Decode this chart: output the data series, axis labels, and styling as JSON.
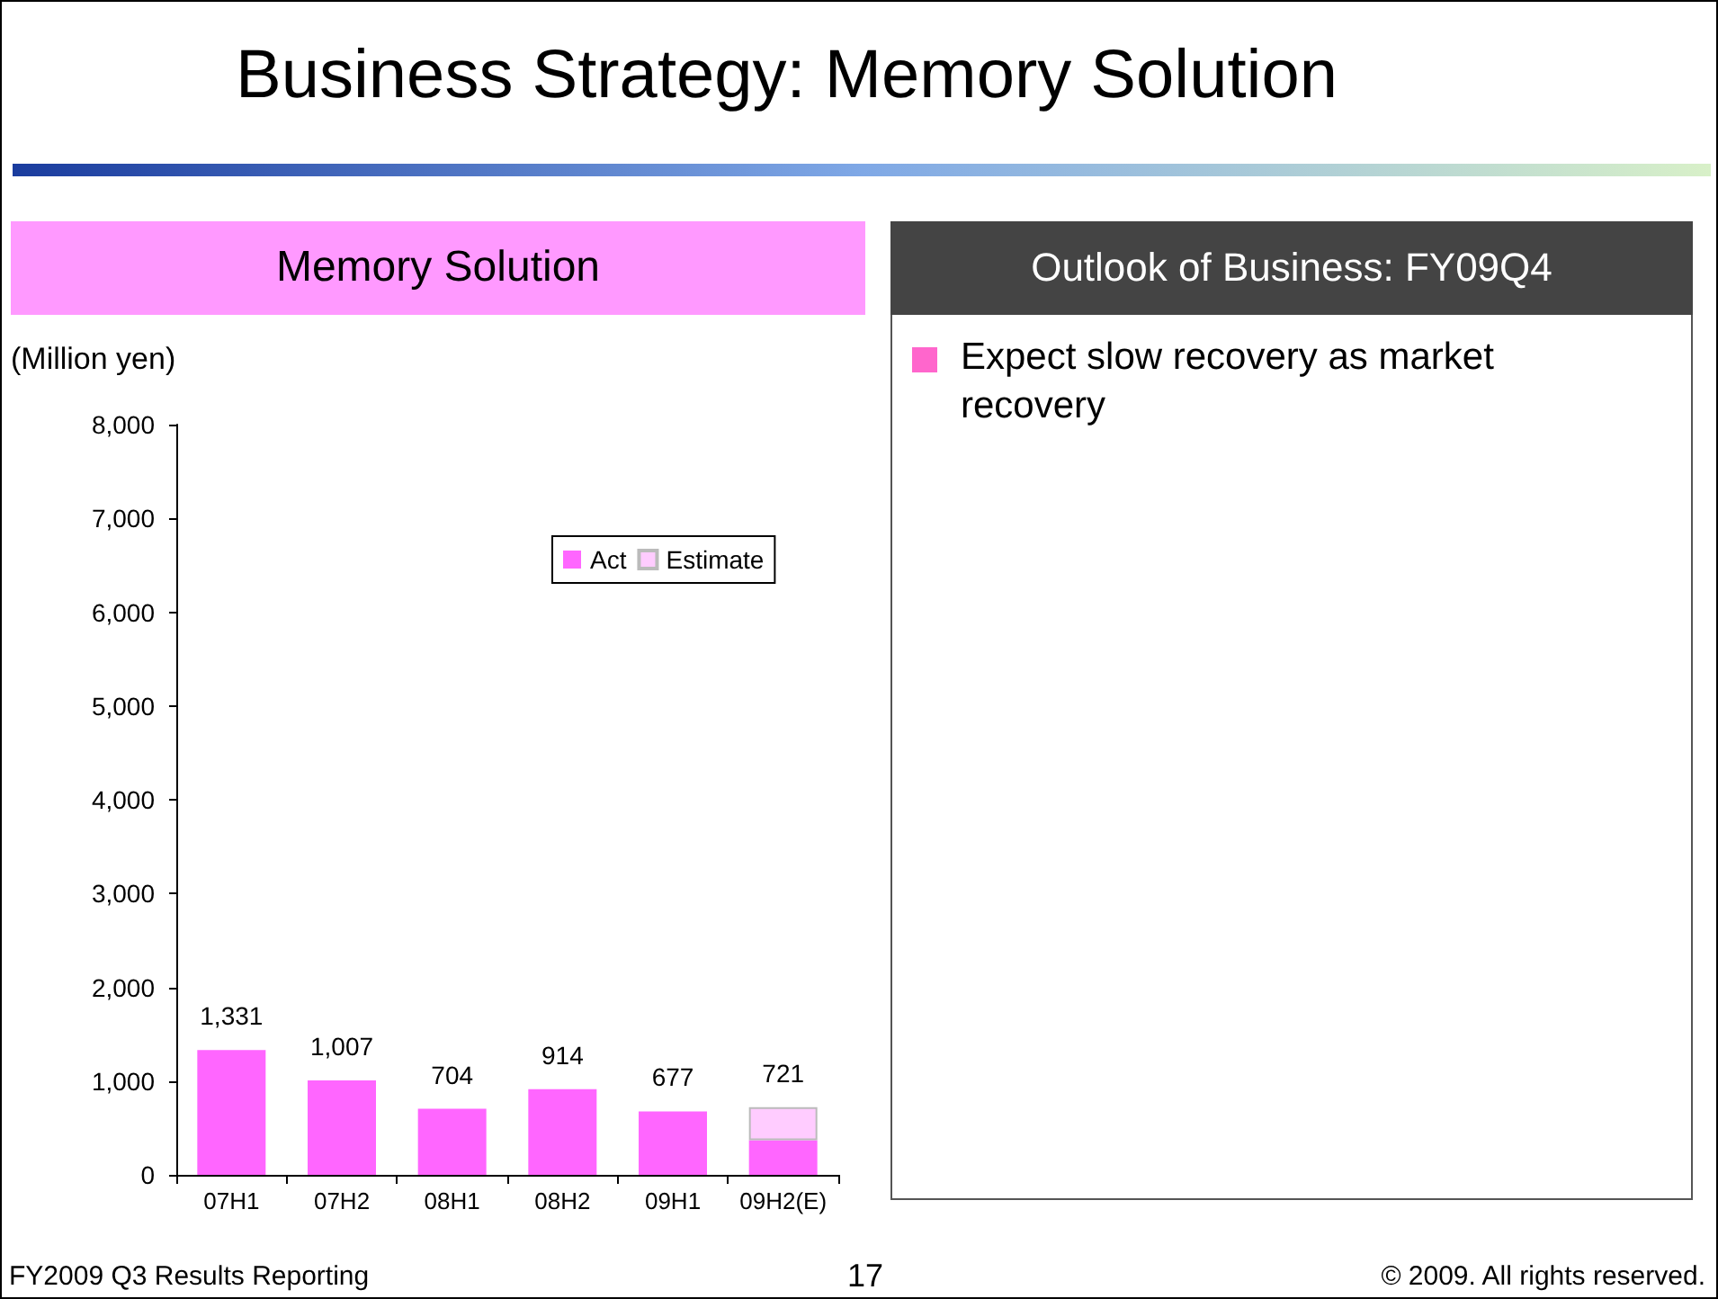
{
  "chart_data": {
    "type": "bar",
    "title": "Business Strategy: Memory Solution",
    "ylabel": "(Million yen)",
    "categories": [
      "07H1",
      "07H2",
      "08H1",
      "08H2",
      "09H1",
      "09H2(E)"
    ],
    "series": [
      {
        "name": "Act",
        "color": "#ff66ff",
        "values": [
          1331,
          1007,
          704,
          914,
          677,
          370
        ]
      },
      {
        "name": "Estimate",
        "color": "#ffccff",
        "values": [
          null,
          null,
          null,
          null,
          null,
          351
        ]
      }
    ],
    "stacked": true,
    "totals": [
      "1,331",
      "1,007",
      "704",
      "914",
      "677",
      "721"
    ],
    "ylim": [
      0,
      8000
    ],
    "yticks": [
      {
        "value": 0,
        "label": "0"
      },
      {
        "value": 1000,
        "label": "1,000"
      },
      {
        "value": 2000,
        "label": "2,000"
      },
      {
        "value": 3000,
        "label": "3,000"
      },
      {
        "value": 4000,
        "label": "4,000"
      },
      {
        "value": 5000,
        "label": "5,000"
      },
      {
        "value": 6000,
        "label": "6,000"
      },
      {
        "value": 7000,
        "label": "7,000"
      },
      {
        "value": 8000,
        "label": "8,000"
      }
    ],
    "grid": false,
    "legend": "top right",
    "annotations": [
      "Memory Solution",
      "Outlook of Business: FY09Q4",
      "Expect slow recovery as market recovery",
      "FY2009 Q3 Results Reporting",
      "17",
      "© 2009. All rights reserved."
    ]
  }
}
